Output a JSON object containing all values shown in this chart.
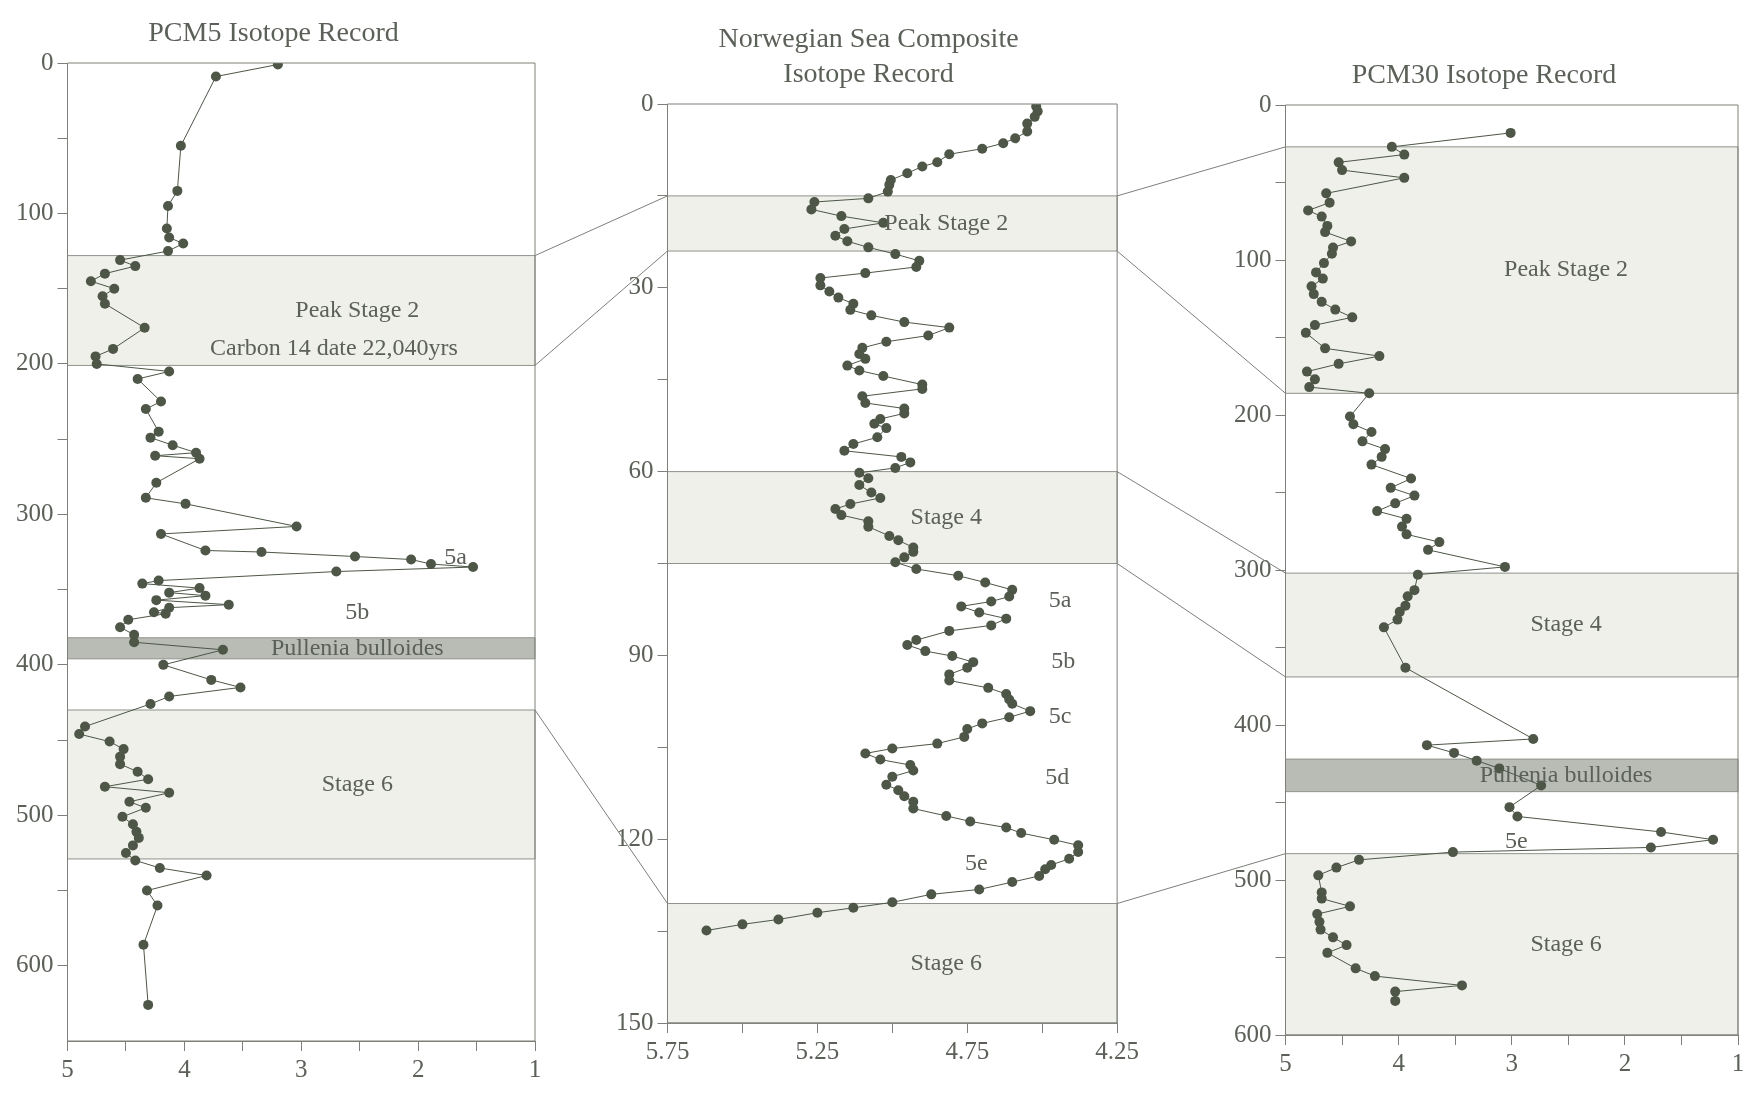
{
  "chart_data": [
    {
      "type": "line",
      "title": "PCM5 Isotope Record",
      "xlim": [
        5,
        1
      ],
      "xticks": [
        5,
        {
          "value": 4.5,
          "label": null
        },
        4,
        {
          "value": 3.5,
          "label": null
        },
        3,
        {
          "value": 2.5,
          "label": null
        },
        2,
        {
          "value": 1.5,
          "label": null
        },
        1
      ],
      "ylim": [
        650,
        0
      ],
      "yticks": [
        0,
        {
          "value": 50,
          "label": null
        },
        100,
        {
          "value": 150,
          "label": null
        },
        200,
        {
          "value": 250,
          "label": null
        },
        300,
        {
          "value": 350,
          "label": null
        },
        400,
        {
          "value": 450,
          "label": null
        },
        500,
        {
          "value": 550,
          "label": null
        },
        600
      ],
      "marker": "circle",
      "line_style": "solid",
      "series": [
        {
          "color": "#4d5647",
          "x": [
            3.2,
            3.73,
            4.03,
            4.06,
            4.14,
            4.15,
            4.13,
            4.01,
            4.14,
            4.55,
            4.42,
            4.68,
            4.8,
            4.6,
            4.7,
            4.68,
            4.34,
            4.61,
            4.76,
            4.75,
            4.13,
            4.4,
            4.2,
            4.33,
            4.22,
            4.29,
            4.1,
            3.9,
            4.25,
            3.87,
            4.24,
            4.33,
            3.99,
            3.04,
            4.2,
            3.82,
            3.34,
            2.54,
            2.06,
            1.89,
            1.53,
            2.7,
            4.22,
            4.36,
            3.87,
            4.13,
            3.82,
            4.24,
            3.62,
            4.13,
            4.26,
            4.16,
            4.48,
            4.55,
            4.43,
            4.43,
            3.67,
            4.18,
            3.77,
            3.52,
            4.13,
            4.29,
            4.85,
            4.9,
            4.64,
            4.52,
            4.55,
            4.55,
            4.4,
            4.31,
            4.68,
            4.13,
            4.47,
            4.33,
            4.53,
            4.44,
            4.41,
            4.39,
            4.44,
            4.5,
            4.42,
            4.21,
            3.81,
            4.32,
            4.23,
            4.35,
            4.31
          ],
          "values": [
            1,
            9,
            55,
            85,
            95,
            110,
            116,
            120,
            125,
            131,
            135,
            140,
            145,
            150,
            155,
            160,
            176,
            190,
            195,
            200,
            205,
            210,
            225,
            230,
            245,
            249,
            254,
            259,
            261,
            263,
            279,
            289,
            293,
            308,
            313,
            324,
            325,
            328,
            330,
            333,
            335,
            338,
            344,
            346,
            349,
            352,
            354,
            357,
            360,
            362,
            365,
            366,
            370,
            375,
            380,
            385,
            390,
            400,
            410,
            415,
            421,
            426,
            441,
            446,
            451,
            456,
            461,
            466,
            471,
            476,
            481,
            485,
            491,
            495,
            501,
            506,
            511,
            515,
            520,
            525,
            530,
            535,
            540,
            550,
            560,
            586,
            626
          ]
        }
      ],
      "bands": [
        {
          "axis": "y",
          "from": 128,
          "to": 201,
          "label": "Peak Stage 2",
          "color": "#eef0e9"
        },
        {
          "axis": "y",
          "from": 382,
          "to": 396,
          "label": "Pullenia bulloides",
          "color": "#b9bcb5"
        },
        {
          "axis": "y",
          "from": 430,
          "to": 529,
          "label": "Stage 6",
          "color": "#eef0e9"
        }
      ],
      "annotations": [
        "Carbon 14 date 22,040yrs",
        "5a",
        "5b"
      ]
    },
    {
      "type": "line",
      "title": "Norwegian Sea Composite Isotope Record",
      "xlim": [
        5.75,
        4.25
      ],
      "xticks": [
        5.75,
        {
          "value": 5.5,
          "label": null
        },
        5.25,
        {
          "value": 5,
          "label": null
        },
        4.75,
        {
          "value": 4.5,
          "label": null
        },
        4.25
      ],
      "ylim": [
        150,
        0
      ],
      "yticks": [
        0,
        {
          "value": 15,
          "label": null
        },
        30,
        {
          "value": 45,
          "label": null
        },
        60,
        {
          "value": 75,
          "label": null
        },
        90,
        {
          "value": 105,
          "label": null
        },
        120,
        {
          "value": 135,
          "label": null
        },
        150
      ],
      "marker": "circle",
      "line_style": "solid",
      "series": [
        {
          "color": "#4d5647",
          "x": [
            4.52,
            4.515,
            4.525,
            4.55,
            4.55,
            4.59,
            4.63,
            4.7,
            4.81,
            4.85,
            4.9,
            4.95,
            5.005,
            5.01,
            5.015,
            5.08,
            5.26,
            5.27,
            5.17,
            5.03,
            5.16,
            5.19,
            5.15,
            5.08,
            4.99,
            4.91,
            4.92,
            5.09,
            5.24,
            5.24,
            5.21,
            5.18,
            5.13,
            5.14,
            5.07,
            4.96,
            4.81,
            4.88,
            5.02,
            5.1,
            5.11,
            5.09,
            5.15,
            5.11,
            5.03,
            4.9,
            4.9,
            5.1,
            5.09,
            4.96,
            4.96,
            5.04,
            5.06,
            5.02,
            5.05,
            5.13,
            5.16,
            4.97,
            4.94,
            4.99,
            5.11,
            5.08,
            5.11,
            5.07,
            5.04,
            5.14,
            5.19,
            5.17,
            5.08,
            5.08,
            5.01,
            4.98,
            4.93,
            4.93,
            4.96,
            4.99,
            4.92,
            4.78,
            4.69,
            4.6,
            4.61,
            4.67,
            4.77,
            4.71,
            4.62,
            4.67,
            4.81,
            4.92,
            4.95,
            4.89,
            4.8,
            4.73,
            4.75,
            4.81,
            4.81,
            4.68,
            4.62,
            4.61,
            4.6,
            4.54,
            4.61,
            4.7,
            4.75,
            4.76,
            4.85,
            5.0,
            5.09,
            5.04,
            4.94,
            4.93,
            5.0,
            5.02,
            4.98,
            4.96,
            4.93,
            4.93,
            4.82,
            4.74,
            4.62,
            4.57,
            4.46,
            4.38,
            4.38,
            4.41,
            4.47,
            4.49,
            4.51,
            4.6,
            4.71,
            4.87,
            5.0,
            5.13,
            5.25,
            5.38,
            5.5,
            5.62
          ],
          "values": [
            0.4,
            1.2,
            2.1,
            3.2,
            4.5,
            5.6,
            6.4,
            7.3,
            8.2,
            9.5,
            10.2,
            11.3,
            12.4,
            13.2,
            14.3,
            15.4,
            16,
            17.2,
            18.3,
            19.4,
            20.4,
            21.5,
            22.4,
            23.4,
            24.5,
            25.6,
            26.6,
            27.6,
            28.4,
            29.6,
            30.6,
            31.6,
            32.6,
            33.6,
            34.5,
            35.6,
            36.5,
            37.8,
            38.8,
            39.8,
            40.8,
            41.6,
            42.7,
            43.5,
            44.4,
            45.8,
            46.5,
            47.7,
            48.8,
            49.7,
            50.5,
            51.4,
            52.2,
            52.9,
            54.4,
            55.5,
            56.6,
            57.6,
            58.5,
            59.4,
            60.2,
            61.1,
            62.2,
            63.4,
            64.3,
            65.3,
            66.1,
            67.1,
            68.1,
            69,
            70.5,
            71.2,
            72.4,
            73.1,
            74,
            74.8,
            75.9,
            77,
            78.1,
            79.3,
            80.4,
            81.2,
            82,
            83,
            84,
            85.1,
            86,
            87.5,
            88.3,
            89.3,
            90.1,
            91.1,
            92,
            93.1,
            94.1,
            95.3,
            96.3,
            97.2,
            97.9,
            99.1,
            100.1,
            101.1,
            102,
            103.3,
            104.4,
            105.2,
            106,
            107,
            107.9,
            108.8,
            109.8,
            111.1,
            112,
            113,
            113.9,
            115,
            116.2,
            117.1,
            118.1,
            119,
            120.1,
            121,
            122.1,
            123.2,
            124.2,
            124.9,
            126,
            127,
            128.2,
            129,
            130.3,
            131.2,
            132,
            133.1,
            133.9,
            134.9
          ]
        }
      ],
      "bands": [
        {
          "axis": "y",
          "from": 15,
          "to": 24,
          "label": "Peak Stage 2",
          "color": "#eef0e9"
        },
        {
          "axis": "y",
          "from": 60,
          "to": 75,
          "label": "Stage 4",
          "color": "#eef0e9"
        },
        {
          "axis": "y",
          "from": 130.5,
          "to": 150,
          "label": "Stage 6",
          "color": "#eef0e9"
        }
      ],
      "annotations": [
        "5a",
        "5b",
        "5c",
        "5d",
        "5e"
      ]
    },
    {
      "type": "line",
      "title": "PCM30 Isotope Record",
      "xlim": [
        5,
        1
      ],
      "xticks": [
        5,
        {
          "value": 4.5,
          "label": null
        },
        4,
        {
          "value": 3.5,
          "label": null
        },
        3,
        {
          "value": 2.5,
          "label": null
        },
        2,
        {
          "value": 1.5,
          "label": null
        },
        1
      ],
      "ylim": [
        600,
        0
      ],
      "yticks": [
        0,
        {
          "value": 50,
          "label": null
        },
        100,
        {
          "value": 150,
          "label": null
        },
        200,
        {
          "value": 250,
          "label": null
        },
        300,
        {
          "value": 350,
          "label": null
        },
        400,
        {
          "value": 450,
          "label": null
        },
        500,
        {
          "value": 550,
          "label": null
        },
        600
      ],
      "marker": "circle",
      "line_style": "solid",
      "series": [
        {
          "color": "#4d5647",
          "x": [
            3.01,
            4.06,
            3.95,
            4.53,
            4.5,
            3.95,
            4.64,
            4.61,
            4.8,
            4.68,
            4.63,
            4.65,
            4.42,
            4.58,
            4.59,
            4.66,
            4.73,
            4.67,
            4.77,
            4.75,
            4.68,
            4.56,
            4.41,
            4.74,
            4.82,
            4.65,
            4.17,
            4.53,
            4.81,
            4.74,
            4.79,
            4.26,
            4.43,
            4.4,
            4.24,
            4.32,
            4.12,
            4.15,
            4.24,
            3.89,
            4.07,
            3.86,
            4.03,
            4.19,
            3.93,
            3.97,
            3.93,
            3.64,
            3.74,
            3.06,
            3.83,
            3.86,
            3.92,
            3.94,
            3.99,
            4.01,
            4.13,
            3.94,
            2.81,
            3.75,
            3.51,
            3.31,
            3.11,
            2.74,
            3.02,
            2.95,
            1.68,
            1.22,
            1.77,
            3.52,
            4.35,
            4.55,
            4.71,
            4.68,
            4.68,
            4.43,
            4.72,
            4.7,
            4.69,
            4.58,
            4.46,
            4.63,
            4.38,
            4.21,
            3.44,
            4.03,
            4.03
          ],
          "values": [
            18,
            27,
            32,
            37,
            42,
            47,
            57,
            63,
            68,
            72,
            78,
            82,
            88,
            92,
            96,
            102,
            108,
            112,
            117,
            122,
            127,
            132,
            137,
            142,
            147,
            157,
            162,
            167,
            172,
            177,
            182,
            186,
            201,
            206,
            211,
            217,
            222,
            227,
            232,
            241,
            247,
            252,
            257,
            262,
            267,
            272,
            277,
            282,
            287,
            298,
            303,
            313,
            317,
            323,
            327,
            332,
            337,
            363,
            409,
            413,
            418,
            423,
            428,
            439,
            453,
            459,
            469,
            474,
            479,
            482,
            487,
            492,
            497,
            508,
            512,
            517,
            522,
            527,
            532,
            537,
            542,
            547,
            557,
            562,
            568,
            572,
            578
          ]
        }
      ],
      "bands": [
        {
          "axis": "y",
          "from": 27,
          "to": 186,
          "label": "Peak Stage 2",
          "color": "#eef0e9"
        },
        {
          "axis": "y",
          "from": 302,
          "to": 369,
          "label": "Stage 4",
          "color": "#eef0e9"
        },
        {
          "axis": "y",
          "from": 422,
          "to": 443,
          "label": "Pullenia bulloides",
          "color": "#b9bcb5"
        },
        {
          "axis": "y",
          "from": 483,
          "to": 600,
          "label": "Stage 6",
          "color": "#eef0e9"
        }
      ],
      "annotations": [
        "5e"
      ]
    }
  ]
}
